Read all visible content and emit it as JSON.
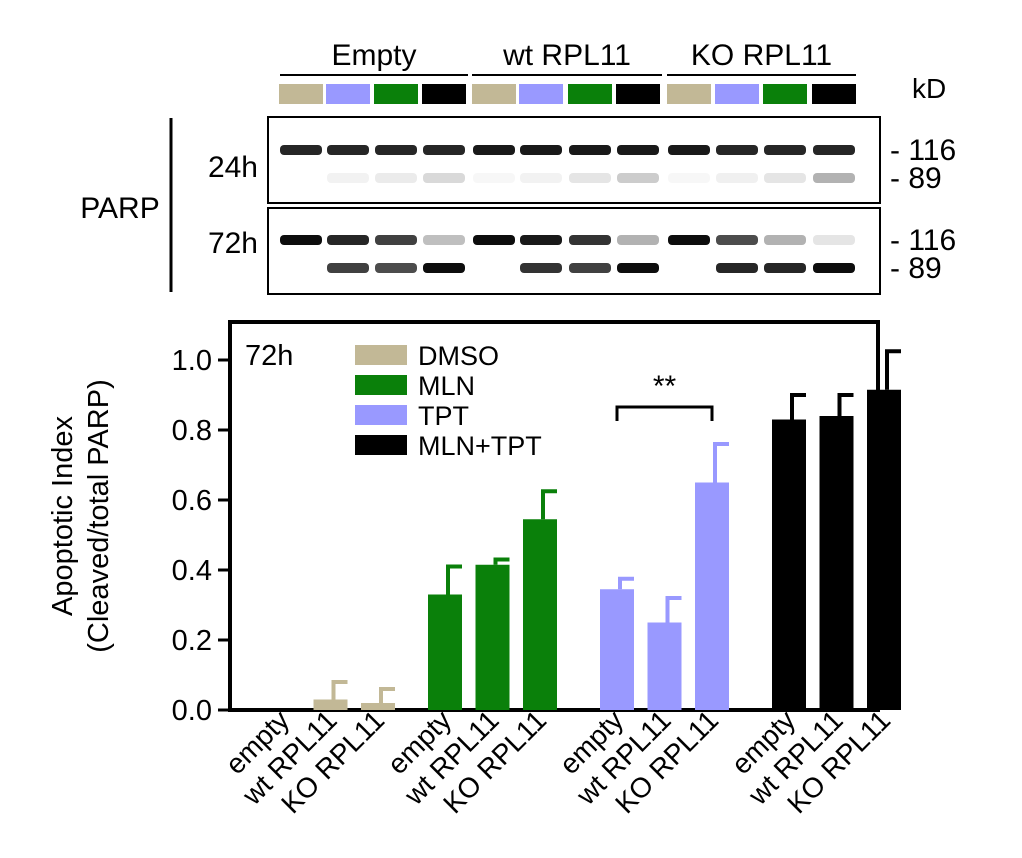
{
  "blot": {
    "groups": [
      {
        "label": "Empty"
      },
      {
        "label": "wt RPL11"
      },
      {
        "label": "KO RPL11"
      }
    ],
    "lane_colors": [
      "#c2b896",
      "#9999ff",
      "#0a800a",
      "#000000"
    ],
    "kd_label": "kD",
    "protein_label": "PARP",
    "panels": [
      {
        "time": "24h",
        "markers": [
          "- 116",
          "- 89"
        ],
        "full": [
          0.85,
          0.85,
          0.85,
          0.85,
          0.9,
          0.9,
          0.9,
          0.9,
          0.9,
          0.85,
          0.85,
          0.85
        ],
        "cleaved": [
          0.0,
          0.05,
          0.08,
          0.15,
          0.03,
          0.05,
          0.1,
          0.2,
          0.03,
          0.06,
          0.1,
          0.3
        ]
      },
      {
        "time": "72h",
        "markers": [
          "- 116",
          "- 89"
        ],
        "full": [
          0.95,
          0.85,
          0.75,
          0.25,
          0.95,
          0.9,
          0.8,
          0.3,
          0.95,
          0.7,
          0.3,
          0.1
        ],
        "cleaved": [
          0.0,
          0.75,
          0.7,
          0.95,
          0.0,
          0.8,
          0.75,
          0.95,
          0.0,
          0.85,
          0.85,
          0.95
        ]
      }
    ]
  },
  "chart_data": {
    "type": "bar",
    "annotation": "72h",
    "ylabel_line1": "Apoptotic Index",
    "ylabel_line2": "(Cleaved/total PARP)",
    "ylim": [
      0,
      1.0
    ],
    "yticks": [
      "0.0",
      "0.2",
      "0.4",
      "0.6",
      "0.8",
      "1.0"
    ],
    "ytick_values": [
      0,
      0.2,
      0.4,
      0.6,
      0.8,
      1.0
    ],
    "categories": [
      "empty",
      "wt RPL11",
      "KO RPL11"
    ],
    "legend": [
      {
        "name": "DMSO",
        "color": "#c2b896"
      },
      {
        "name": "MLN",
        "color": "#0a800a"
      },
      {
        "name": "TPT",
        "color": "#9999ff"
      },
      {
        "name": "MLN+TPT",
        "color": "#000000"
      }
    ],
    "series": [
      {
        "name": "DMSO",
        "color": "#c2b896",
        "values": [
          0.0,
          0.03,
          0.02
        ],
        "errors": [
          0.0,
          0.05,
          0.04
        ]
      },
      {
        "name": "MLN",
        "color": "#0a800a",
        "values": [
          0.33,
          0.415,
          0.545
        ],
        "errors": [
          0.08,
          0.015,
          0.08
        ]
      },
      {
        "name": "TPT",
        "color": "#9999ff",
        "values": [
          0.345,
          0.25,
          0.65
        ],
        "errors": [
          0.03,
          0.07,
          0.11
        ]
      },
      {
        "name": "MLN+TPT",
        "color": "#000000",
        "values": [
          0.83,
          0.84,
          0.915
        ],
        "errors": [
          0.07,
          0.06,
          0.11
        ]
      }
    ],
    "significance": {
      "label": "**",
      "series": "TPT",
      "from_category": 0,
      "to_category": 2
    },
    "grid": false
  }
}
